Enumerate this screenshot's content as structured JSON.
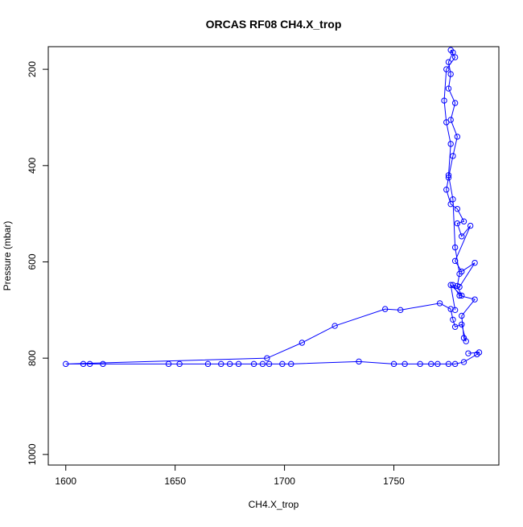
{
  "chart_data": {
    "type": "line",
    "title": "ORCAS RF08 CH4.X_trop",
    "x_label": "CH4.X_trop",
    "y_label": "Pressure (mbar)",
    "x": [
      1784,
      1789,
      1788,
      1782,
      1778,
      1775,
      1770,
      1767,
      1762,
      1755,
      1750,
      1734,
      1703,
      1699,
      1693,
      1690,
      1686,
      1679,
      1675,
      1671,
      1665,
      1652,
      1647,
      1617,
      1611,
      1608,
      1600,
      1692,
      1708,
      1723,
      1746,
      1753,
      1771,
      1776,
      1777,
      1778,
      1781,
      1783,
      1782,
      1781,
      1787,
      1780,
      1777,
      1780,
      1787,
      1781,
      1778,
      1785,
      1781,
      1779,
      1782,
      1779,
      1776,
      1774,
      1775,
      1777,
      1779,
      1776,
      1778,
      1775,
      1776,
      1775,
      1777,
      1776,
      1778,
      1774,
      1773,
      1774,
      1776,
      1775,
      1777,
      1778,
      1780,
      1779,
      1781,
      1776,
      1778
    ],
    "series": [
      {
        "name": "CH4.X_trop",
        "color": "#0000ff",
        "values": [
          790,
          788,
          792,
          808,
          812,
          812,
          812,
          812,
          812,
          812,
          812,
          807,
          812,
          812,
          812,
          812,
          812,
          812,
          812,
          812,
          812,
          812,
          812,
          812,
          812,
          812,
          812,
          800,
          768,
          733,
          698,
          700,
          686,
          698,
          720,
          735,
          730,
          765,
          758,
          712,
          678,
          670,
          648,
          652,
          602,
          620,
          598,
          525,
          547,
          520,
          516,
          490,
          480,
          450,
          425,
          380,
          340,
          305,
          270,
          240,
          210,
          185,
          165,
          160,
          175,
          200,
          265,
          310,
          355,
          420,
          470,
          570,
          625,
          650,
          670,
          648,
          700
        ]
      }
    ],
    "xlim": [
      1592,
      1798
    ],
    "ylim": [
      1022,
      153
    ],
    "xticks": [
      1600,
      1650,
      1700,
      1750
    ],
    "yticks": [
      200,
      400,
      600,
      800,
      1000
    ],
    "grid": false
  }
}
